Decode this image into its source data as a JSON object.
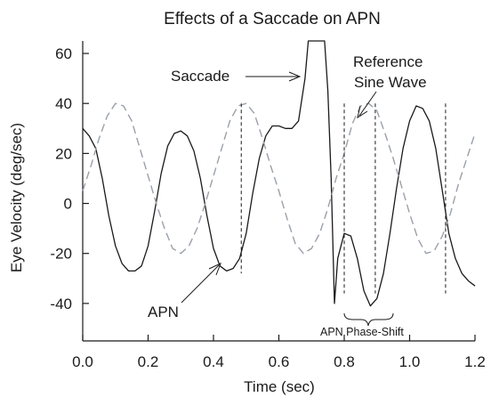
{
  "chart_data": {
    "type": "line",
    "title": "Effects of a Saccade on APN",
    "xlabel": "Time (sec)",
    "ylabel": "Eye Velocity (deg/sec)",
    "xlim": [
      0.0,
      1.2
    ],
    "ylim": [
      -55,
      65
    ],
    "xticks": [
      0.0,
      0.2,
      0.4,
      0.6,
      0.8,
      1.0,
      1.2
    ],
    "xtick_labels": [
      "0.0",
      "0.2",
      "0.4",
      "0.6",
      "0.8",
      "1.0",
      "1.2"
    ],
    "yticks": [
      60,
      40,
      20,
      0,
      -20,
      -40
    ],
    "ytick_labels": [
      "60",
      "40",
      "20",
      "0",
      "-20",
      "-40"
    ],
    "grid": false,
    "legend": "none",
    "series": [
      {
        "style": "solid",
        "color": "#1a1a1a",
        "x": [
          0.0,
          0.02,
          0.04,
          0.06,
          0.08,
          0.1,
          0.12,
          0.14,
          0.16,
          0.18,
          0.2,
          0.22,
          0.24,
          0.26,
          0.28,
          0.3,
          0.32,
          0.34,
          0.36,
          0.38,
          0.4,
          0.42,
          0.44,
          0.46,
          0.48,
          0.5,
          0.52,
          0.54,
          0.56,
          0.58,
          0.6,
          0.62,
          0.64,
          0.66,
          0.68,
          0.69,
          0.7,
          0.74,
          0.75,
          0.76,
          0.77,
          0.78,
          0.8,
          0.82,
          0.84,
          0.86,
          0.88,
          0.9,
          0.92,
          0.94,
          0.96,
          0.98,
          1.0,
          1.02,
          1.04,
          1.06,
          1.08,
          1.1,
          1.12,
          1.14,
          1.16,
          1.18,
          1.2
        ],
        "y": [
          30,
          27,
          22,
          10,
          -5,
          -17,
          -24,
          -27,
          -27,
          -25,
          -17,
          -3,
          12,
          23,
          28,
          29,
          27,
          21,
          10,
          -5,
          -18,
          -25,
          -27,
          -26,
          -22,
          -12,
          4,
          18,
          27,
          31,
          31,
          30,
          30,
          33,
          50,
          65,
          65,
          65,
          45,
          10,
          -40,
          -22,
          -12,
          -13,
          -22,
          -35,
          -41,
          -38,
          -28,
          -12,
          6,
          22,
          33,
          39,
          38,
          33,
          22,
          5,
          -12,
          -22,
          -28,
          -31,
          -33
        ]
      },
      {
        "name": "Reference Sine Wave",
        "style": "dashed",
        "color": "#9aa0aa",
        "x": [
          0.0,
          0.025,
          0.05,
          0.075,
          0.1,
          0.125,
          0.15,
          0.175,
          0.2,
          0.225,
          0.25,
          0.275,
          0.3,
          0.325,
          0.35,
          0.375,
          0.4,
          0.425,
          0.45,
          0.475,
          0.5,
          0.525,
          0.55,
          0.575,
          0.6,
          0.625,
          0.65,
          0.675,
          0.7,
          0.725,
          0.75,
          0.775,
          0.8,
          0.825,
          0.85,
          0.875,
          0.9,
          0.925,
          0.95,
          0.975,
          1.0,
          1.025,
          1.05,
          1.075,
          1.1,
          1.125,
          1.15,
          1.175,
          1.2
        ],
        "y": [
          5,
          15,
          26,
          35,
          40,
          39,
          33,
          22,
          11,
          0,
          -10,
          -18,
          -20,
          -17,
          -10,
          0,
          11,
          22,
          33,
          39,
          40,
          36,
          26,
          15,
          5,
          -6,
          -16,
          -20,
          -18,
          -12,
          -2,
          10,
          20,
          32,
          39,
          40,
          37,
          28,
          18,
          7,
          -4,
          -14,
          -20,
          -19,
          -13,
          -4,
          8,
          18,
          28
        ]
      }
    ],
    "reference_markers_x": [
      0.485,
      0.8,
      0.895,
      1.11
    ],
    "annotations": [
      {
        "text": "Saccade",
        "arrow_to": "saccade spike"
      },
      {
        "text": "Reference",
        "arrow_to": "dashed sine curve"
      },
      {
        "text": "Sine Wave"
      },
      {
        "text": "APN",
        "arrow_to": "solid trace trough"
      },
      {
        "text": "APN Phase-Shift",
        "spans_x": [
          0.8,
          0.895
        ]
      }
    ]
  }
}
